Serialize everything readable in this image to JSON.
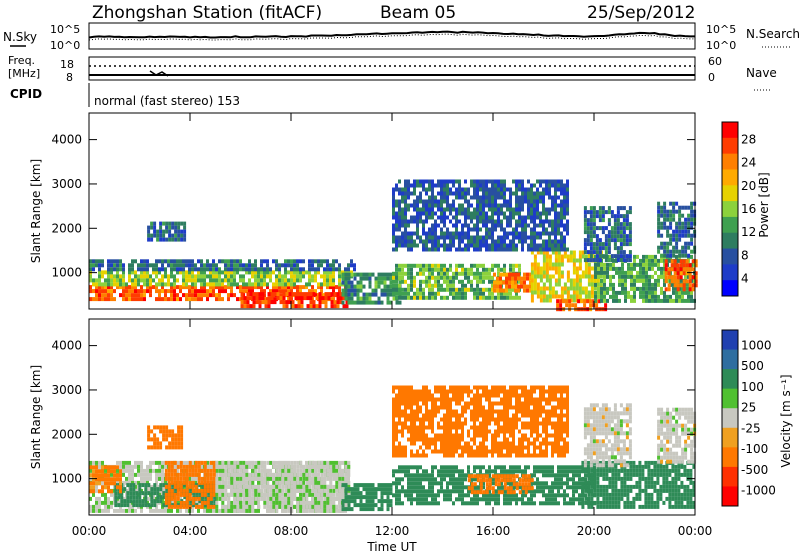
{
  "header": {
    "station": "Zhongshan Station (fitACF)",
    "beam": "Beam 05",
    "date": "25/Sep/2012"
  },
  "top_panels": {
    "nsky_label": "N.Sky",
    "nsearch_label": "N.Search",
    "log_ticks": [
      "10^5",
      "10^0"
    ],
    "freq_label_1": "Freq.",
    "freq_label_2": "[MHz]",
    "freq_ticks": [
      "18",
      "8"
    ],
    "nave_label": "Nave",
    "nave_ticks": [
      "60",
      "0"
    ],
    "cpid_label": "CPID",
    "cpid_text": "normal (fast stereo) 153"
  },
  "axes": {
    "slant_label": "Slant Range [km]",
    "range_ticks": [
      "4000",
      "3000",
      "2000",
      "1000"
    ],
    "time_ticks": [
      "00:00",
      "04:00",
      "08:00",
      "12:00",
      "16:00",
      "20:00",
      "00:00"
    ],
    "time_label": "Time UT"
  },
  "power_scale": {
    "label": "Power [dB]",
    "ticks": [
      "28",
      "24",
      "20",
      "16",
      "12",
      "8",
      "4"
    ],
    "colors": [
      "#ff0000",
      "#ff3c00",
      "#ff7f00",
      "#ffaa00",
      "#e6d200",
      "#8cd23c",
      "#3fa050",
      "#2e7d60",
      "#2850a0",
      "#1e3cc8",
      "#0000ff"
    ]
  },
  "velocity_scale": {
    "label": "Velocity [m s⁻¹]",
    "ticks": [
      "1000",
      "500",
      "100",
      "25",
      "-25",
      "-100",
      "-500",
      "-1000"
    ],
    "colors": [
      "#2040b0",
      "#2f6ea0",
      "#2e8b57",
      "#50c030",
      "#c8c8c0",
      "#f0a020",
      "#ff7800",
      "#ff3000",
      "#ff0000"
    ]
  },
  "chart_data": [
    {
      "type": "heatmap",
      "title": "Power",
      "x_range_hours": [
        0,
        24
      ],
      "ylim": [
        180,
        4600
      ],
      "xlabel": "",
      "ylabel": "Slant Range [km]",
      "colorbar": "Power [dB]",
      "colorbar_range": [
        0,
        30
      ],
      "blobs": [
        {
          "t0": 0.0,
          "t1": 10.2,
          "r0": 400,
          "r1": 720,
          "value": 26
        },
        {
          "t0": 6.0,
          "t1": 10.2,
          "r0": 250,
          "r1": 560,
          "value": 28
        },
        {
          "t0": 0.0,
          "t1": 10.4,
          "r0": 720,
          "r1": 1050,
          "value": 15
        },
        {
          "t0": 0.0,
          "t1": 10.5,
          "r0": 1050,
          "r1": 1300,
          "value": 7
        },
        {
          "t0": 2.3,
          "t1": 3.8,
          "r0": 1750,
          "r1": 2150,
          "value": 7
        },
        {
          "t0": 10.0,
          "t1": 12.3,
          "r0": 300,
          "r1": 1000,
          "value": 10
        },
        {
          "t0": 12.0,
          "t1": 17.0,
          "r0": 400,
          "r1": 1200,
          "value": 13
        },
        {
          "t0": 16.0,
          "t1": 17.5,
          "r0": 600,
          "r1": 1000,
          "value": 24
        },
        {
          "t0": 17.5,
          "t1": 20.3,
          "r0": 350,
          "r1": 1500,
          "value": 18
        },
        {
          "t0": 18.5,
          "t1": 20.5,
          "r0": 180,
          "r1": 400,
          "value": 26
        },
        {
          "t0": 20.0,
          "t1": 24.0,
          "r0": 400,
          "r1": 1400,
          "value": 12
        },
        {
          "t0": 22.8,
          "t1": 24.0,
          "r0": 600,
          "r1": 1300,
          "value": 26
        },
        {
          "t0": 19.6,
          "t1": 21.5,
          "r0": 1300,
          "r1": 2500,
          "value": 7
        },
        {
          "t0": 22.5,
          "t1": 24.0,
          "r0": 1400,
          "r1": 2600,
          "value": 7
        },
        {
          "t0": 12.0,
          "t1": 19.0,
          "r0": 1500,
          "r1": 3100,
          "value": 6
        }
      ]
    },
    {
      "type": "heatmap",
      "title": "Velocity",
      "x_range_hours": [
        0,
        24
      ],
      "ylim": [
        180,
        4600
      ],
      "xlabel": "Time UT",
      "ylabel": "Slant Range [km]",
      "colorbar": "Velocity [m s⁻¹]",
      "colorbar_values": [
        1000,
        500,
        100,
        25,
        -25,
        -100,
        -500,
        -1000
      ],
      "blobs": [
        {
          "t0": 0.0,
          "t1": 10.3,
          "r0": 300,
          "r1": 1400,
          "value": 15
        },
        {
          "t0": 1.0,
          "t1": 5.0,
          "r0": 400,
          "r1": 900,
          "value": 150
        },
        {
          "t0": 3.0,
          "t1": 5.0,
          "r0": 400,
          "r1": 1400,
          "value": -200
        },
        {
          "t0": 0.0,
          "t1": 1.3,
          "r0": 700,
          "r1": 1300,
          "value": -120
        },
        {
          "t0": 2.3,
          "t1": 3.7,
          "r0": 1700,
          "r1": 2200,
          "value": -150
        },
        {
          "t0": 5.0,
          "t1": 10.3,
          "r0": 300,
          "r1": 1400,
          "value": 10
        },
        {
          "t0": 10.0,
          "t1": 12.0,
          "r0": 300,
          "r1": 900,
          "value": 300
        },
        {
          "t0": 12.0,
          "t1": 20.0,
          "r0": 400,
          "r1": 1300,
          "value": 250
        },
        {
          "t0": 15.0,
          "t1": 17.5,
          "r0": 700,
          "r1": 1100,
          "value": -200
        },
        {
          "t0": 19.5,
          "t1": 24.0,
          "r0": 400,
          "r1": 1400,
          "value": 300
        },
        {
          "t0": 19.6,
          "t1": 21.5,
          "r0": 1300,
          "r1": 2700,
          "value": 0
        },
        {
          "t0": 22.5,
          "t1": 24.0,
          "r0": 1400,
          "r1": 2600,
          "value": 0
        },
        {
          "t0": 12.0,
          "t1": 19.0,
          "r0": 1500,
          "r1": 3100,
          "value": -150
        }
      ]
    }
  ]
}
